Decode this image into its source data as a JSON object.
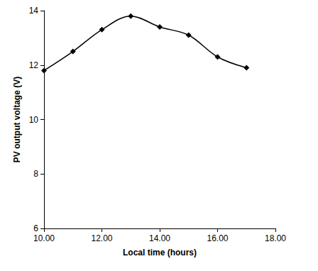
{
  "chart_data": {
    "type": "line",
    "x_label": "Local time (hours)",
    "y_label": "PV output voltage (V)",
    "x": [
      10,
      11,
      12,
      13,
      14,
      15,
      16,
      17
    ],
    "values": [
      11.8,
      12.5,
      13.3,
      13.8,
      13.4,
      13.1,
      12.3,
      11.9
    ],
    "color": "#000000",
    "marker": "diamond",
    "line_style": "solid",
    "xlim": [
      10,
      18
    ],
    "xticks": [
      {
        "value": 10,
        "label": "10.00"
      },
      {
        "value": 12,
        "label": "12.00"
      },
      {
        "value": 14,
        "label": "14.00"
      },
      {
        "value": 16,
        "label": "16.00"
      },
      {
        "value": 18,
        "label": "18.00"
      }
    ],
    "ylim": [
      6,
      14
    ],
    "yticks": [
      6,
      8,
      10,
      12,
      14
    ],
    "grid": false
  }
}
